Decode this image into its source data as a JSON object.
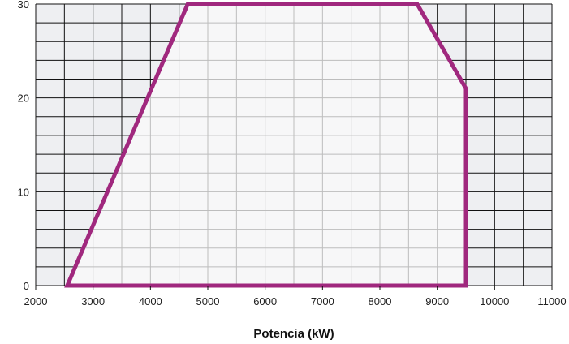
{
  "chart_data": {
    "type": "area",
    "title": "",
    "xlabel": "Potencia (kW)",
    "ylabel": "",
    "xlim": [
      2000,
      11000
    ],
    "ylim": [
      0,
      30
    ],
    "x_ticks": [
      2000,
      3000,
      4000,
      5000,
      6000,
      7000,
      8000,
      9000,
      10000,
      11000
    ],
    "y_ticks": [
      0,
      10,
      20,
      30
    ],
    "x_minor_step": 500,
    "y_minor_step": 2,
    "grid": true,
    "legend": "none",
    "series": [
      {
        "x": [
          2550,
          4650,
          8650,
          9500,
          9500,
          2550
        ],
        "y": [
          0,
          30,
          30,
          21,
          0,
          0
        ]
      }
    ]
  },
  "colors": {
    "outline": "#a0287e",
    "grid_outside": "#111111",
    "grid_inside": "#bdbdbd",
    "bg_outside": "#eeeff2",
    "bg_inside": "#f7f7f8"
  }
}
